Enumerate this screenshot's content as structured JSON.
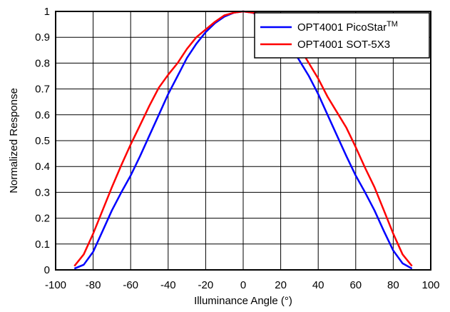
{
  "chart_data": {
    "type": "line",
    "xlabel": "Illuminance Angle (°)",
    "ylabel": "Normalized Response",
    "xlim": [
      -100,
      100
    ],
    "ylim": [
      0,
      1
    ],
    "x_ticks": [
      "-100",
      "-80",
      "-60",
      "-40",
      "-20",
      "0",
      "20",
      "40",
      "60",
      "80",
      "100"
    ],
    "y_ticks": [
      "0",
      "0.1",
      "0.2",
      "0.3",
      "0.4",
      "0.5",
      "0.6",
      "0.7",
      "0.8",
      "0.9",
      "1"
    ],
    "grid": true,
    "legend_position": "top-right",
    "series": [
      {
        "name": "OPT4001 PicoStar",
        "name_superscript": "TM",
        "color": "#0000ff",
        "points": [
          [
            -90,
            0.005
          ],
          [
            -85,
            0.02
          ],
          [
            -80,
            0.07
          ],
          [
            -75,
            0.15
          ],
          [
            -70,
            0.23
          ],
          [
            -65,
            0.3
          ],
          [
            -60,
            0.365
          ],
          [
            -55,
            0.44
          ],
          [
            -50,
            0.52
          ],
          [
            -45,
            0.6
          ],
          [
            -40,
            0.68
          ],
          [
            -35,
            0.75
          ],
          [
            -30,
            0.82
          ],
          [
            -25,
            0.875
          ],
          [
            -20,
            0.92
          ],
          [
            -15,
            0.955
          ],
          [
            -10,
            0.98
          ],
          [
            -5,
            0.995
          ],
          [
            0,
            1.0
          ],
          [
            5,
            0.995
          ],
          [
            10,
            0.98
          ],
          [
            15,
            0.955
          ],
          [
            20,
            0.92
          ],
          [
            25,
            0.87
          ],
          [
            30,
            0.81
          ],
          [
            35,
            0.75
          ],
          [
            40,
            0.68
          ],
          [
            45,
            0.6
          ],
          [
            50,
            0.52
          ],
          [
            55,
            0.44
          ],
          [
            60,
            0.365
          ],
          [
            65,
            0.3
          ],
          [
            70,
            0.23
          ],
          [
            75,
            0.15
          ],
          [
            80,
            0.075
          ],
          [
            85,
            0.025
          ],
          [
            90,
            0.005
          ]
        ]
      },
      {
        "name": "OPT4001 SOT-5X3",
        "color": "#ff0000",
        "points": [
          [
            -90,
            0.015
          ],
          [
            -85,
            0.06
          ],
          [
            -80,
            0.14
          ],
          [
            -75,
            0.23
          ],
          [
            -70,
            0.32
          ],
          [
            -65,
            0.405
          ],
          [
            -60,
            0.485
          ],
          [
            -55,
            0.56
          ],
          [
            -50,
            0.635
          ],
          [
            -45,
            0.705
          ],
          [
            -40,
            0.755
          ],
          [
            -35,
            0.8
          ],
          [
            -30,
            0.855
          ],
          [
            -25,
            0.9
          ],
          [
            -20,
            0.93
          ],
          [
            -15,
            0.96
          ],
          [
            -10,
            0.985
          ],
          [
            -5,
            0.995
          ],
          [
            0,
            1.0
          ],
          [
            5,
            0.995
          ],
          [
            10,
            0.99
          ],
          [
            15,
            0.975
          ],
          [
            20,
            0.945
          ],
          [
            25,
            0.905
          ],
          [
            30,
            0.86
          ],
          [
            35,
            0.8
          ],
          [
            40,
            0.74
          ],
          [
            45,
            0.67
          ],
          [
            50,
            0.61
          ],
          [
            55,
            0.55
          ],
          [
            60,
            0.475
          ],
          [
            65,
            0.395
          ],
          [
            70,
            0.32
          ],
          [
            75,
            0.23
          ],
          [
            80,
            0.14
          ],
          [
            85,
            0.06
          ],
          [
            90,
            0.015
          ]
        ]
      }
    ]
  }
}
